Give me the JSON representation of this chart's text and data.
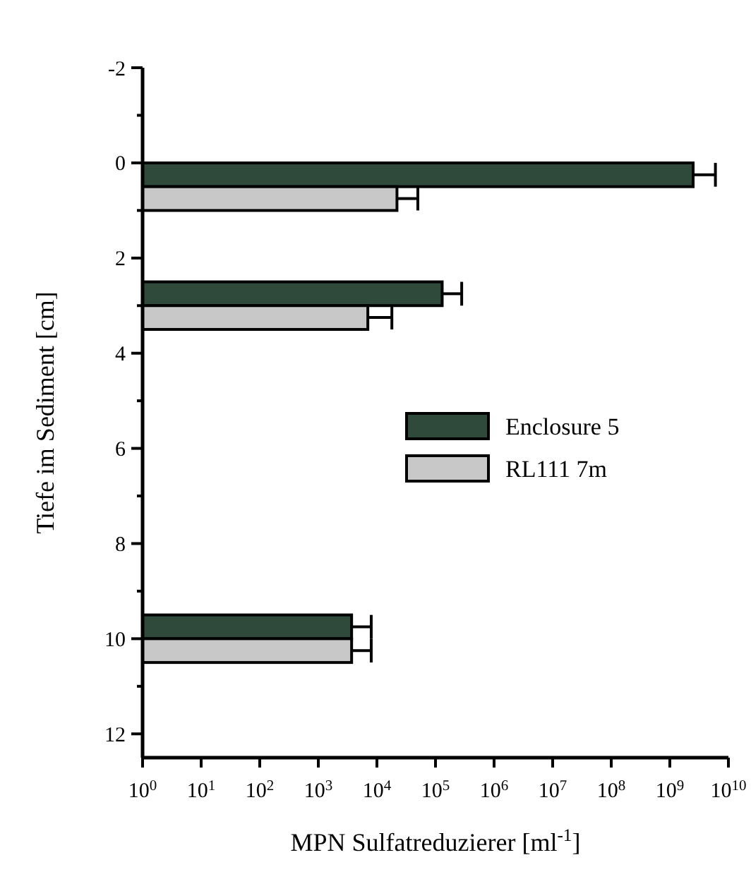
{
  "chart_data": {
    "type": "bar",
    "orientation": "horizontal",
    "log": "x",
    "xlabel": "MPN Sulfatreduzierer [ml$^{-1}$]",
    "ylabel": "Tiefe im Sediment [cm]",
    "x": [
      0.5,
      3,
      10
    ],
    "series": [
      {
        "name": "Enclosure 5",
        "color": "#2f4a3a",
        "values": [
          2500000000,
          130000,
          3700
        ],
        "errors": [
          [
            2500000000,
            6000000000
          ],
          [
            130000,
            280000
          ],
          [
            3700,
            8000
          ]
        ]
      },
      {
        "name": "RL111  7m",
        "color": "#c8c8c8",
        "values": [
          22000,
          7000,
          3700
        ],
        "errors": [
          [
            22000,
            50000
          ],
          [
            7000,
            18000
          ],
          [
            3700,
            8000
          ]
        ]
      }
    ],
    "xlim": [
      1,
      10000000000
    ],
    "xticks": [
      {
        "value": 1,
        "label": "10$^{0}$"
      },
      {
        "value": 10,
        "label": "10$^{1}$"
      },
      {
        "value": 100,
        "label": "10$^{2}$"
      },
      {
        "value": 1000,
        "label": "10$^{3}$"
      },
      {
        "value": 10000,
        "label": "10$^{4}$"
      },
      {
        "value": 100000,
        "label": "10$^{5}$"
      },
      {
        "value": 1000000,
        "label": "10$^{6}$"
      },
      {
        "value": 10000000,
        "label": "10$^{7}$"
      },
      {
        "value": 100000000,
        "label": "10$^{8}$"
      },
      {
        "value": 1000000000,
        "label": "10$^{9}$"
      },
      {
        "value": 10000000000,
        "label": "10$^{10}$"
      }
    ],
    "ylim": [
      12.5,
      -2
    ],
    "yticks": [
      -2,
      {
        "value": -1,
        "label": null
      },
      0,
      {
        "value": 1,
        "label": null
      },
      2,
      {
        "value": 3,
        "label": null
      },
      4,
      {
        "value": 5,
        "label": null
      },
      6,
      {
        "value": 7,
        "label": null
      },
      8,
      {
        "value": 9,
        "label": null
      },
      10,
      {
        "value": 11,
        "label": null
      },
      12
    ],
    "legend": "right",
    "grid": false
  }
}
